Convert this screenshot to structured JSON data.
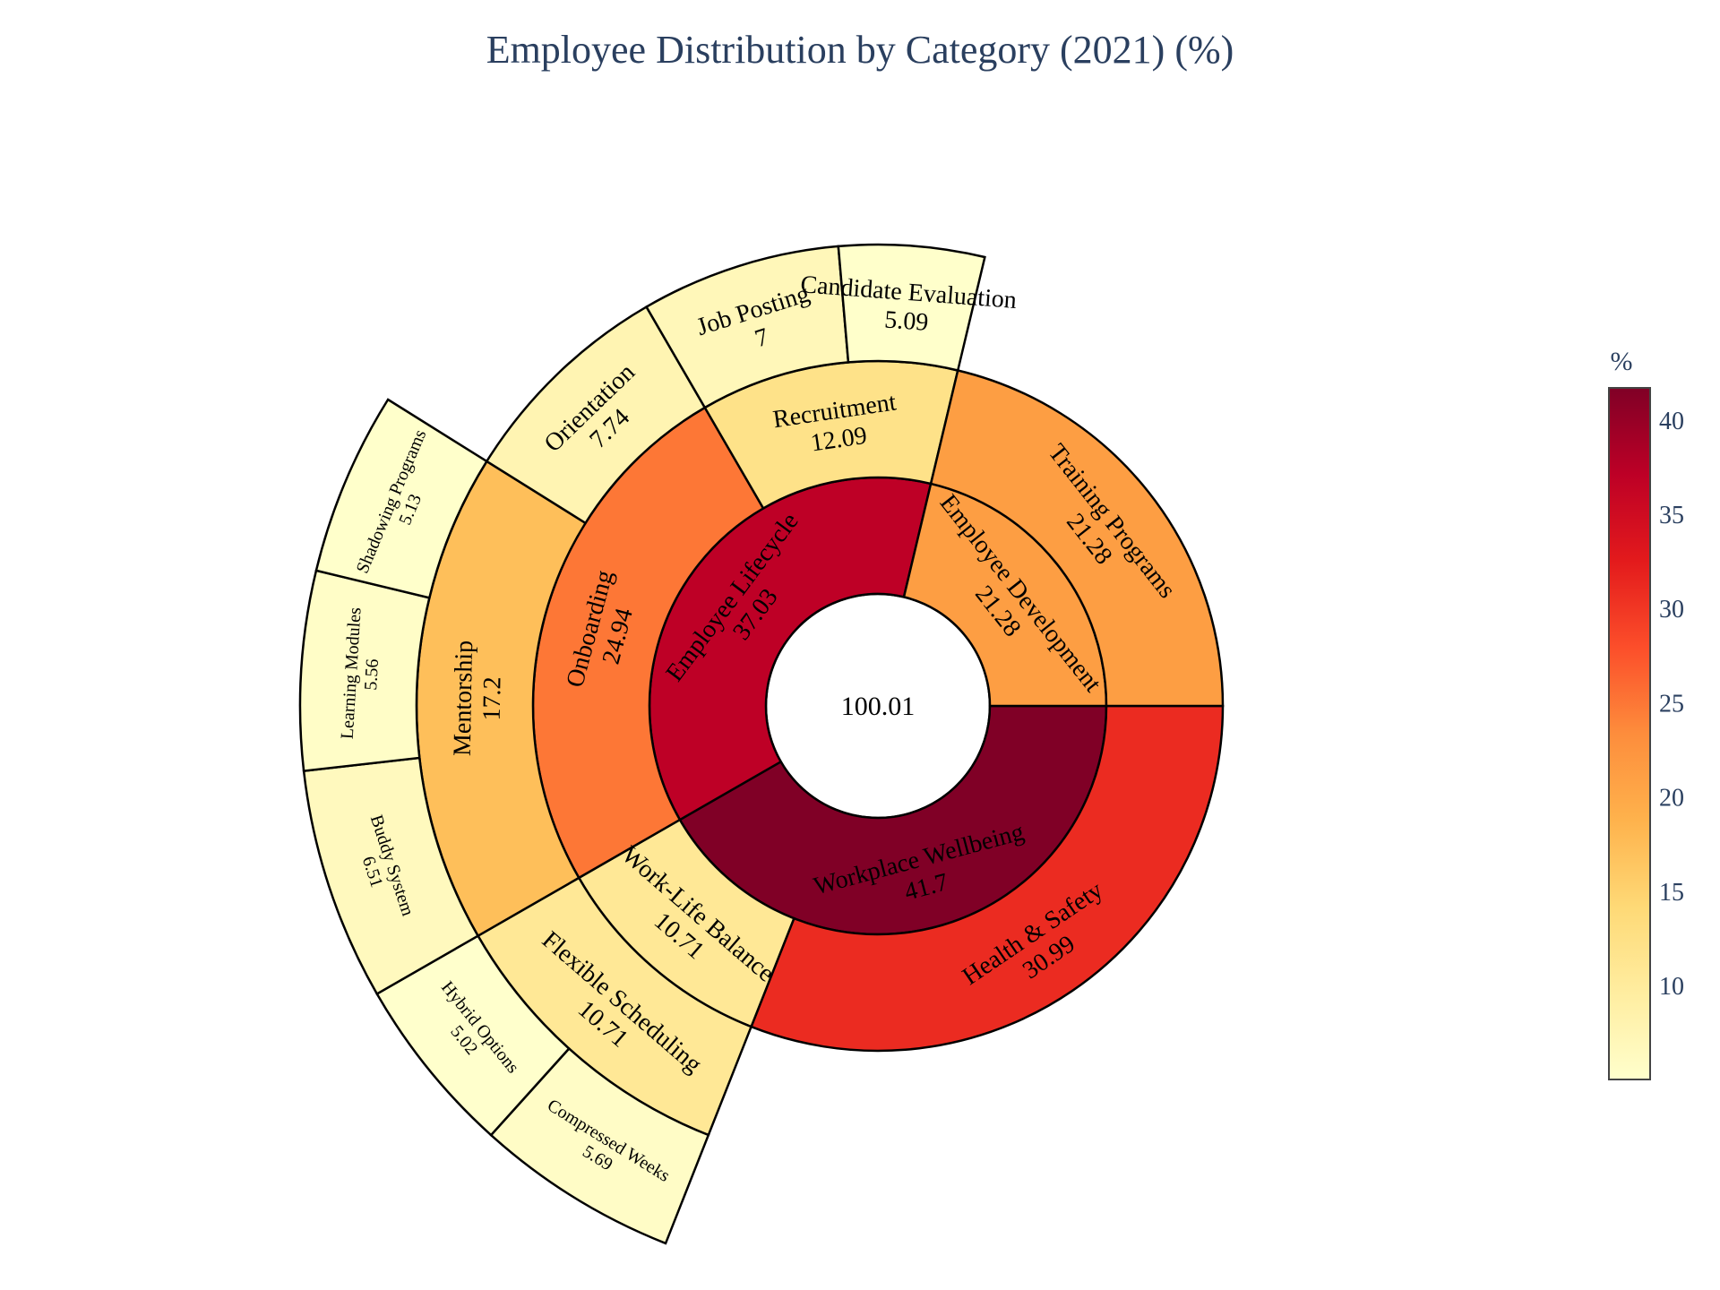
{
  "chart_data": {
    "type": "sunburst",
    "title": "Employee Distribution by Category (2021) (%)",
    "root": {
      "label": "",
      "value": 100.01
    },
    "nodes": [
      {
        "label": "Workplace Wellbeing",
        "value": 41.7,
        "children": [
          {
            "label": "Health & Safety",
            "value": 30.99,
            "children": []
          },
          {
            "label": "Work-Life Balance",
            "value": 10.71,
            "children": [
              {
                "label": "Flexible Scheduling",
                "value": 10.71,
                "children": [
                  {
                    "label": "Compressed Weeks",
                    "value": 5.69
                  },
                  {
                    "label": "Hybrid Options",
                    "value": 5.02
                  }
                ]
              }
            ]
          }
        ]
      },
      {
        "label": "Employee Lifecycle",
        "value": 37.03,
        "children": [
          {
            "label": "Onboarding",
            "value": 24.94,
            "children": [
              {
                "label": "Mentorship",
                "value": 17.2,
                "children": [
                  {
                    "label": "Buddy System",
                    "value": 6.51
                  },
                  {
                    "label": "Learning Modules",
                    "value": 5.56
                  },
                  {
                    "label": "Shadowing Programs",
                    "value": 5.13
                  }
                ]
              },
              {
                "label": "Orientation",
                "value": 7.74,
                "children": []
              }
            ]
          },
          {
            "label": "Recruitment",
            "value": 12.09,
            "children": [
              {
                "label": "Job Posting",
                "value": 7,
                "children": []
              },
              {
                "label": "Candidate Evaluation",
                "value": 5.09,
                "children": []
              }
            ]
          }
        ]
      },
      {
        "label": "Employee Development",
        "value": 21.28,
        "children": [
          {
            "label": "Training Programs",
            "value": 21.28,
            "children": []
          }
        ]
      }
    ],
    "colorscale": "YlOrRd",
    "colorbar": {
      "title": "%",
      "range": [
        5.02,
        41.7
      ],
      "ticks": [
        10,
        15,
        20,
        25,
        30,
        35,
        40
      ]
    }
  }
}
